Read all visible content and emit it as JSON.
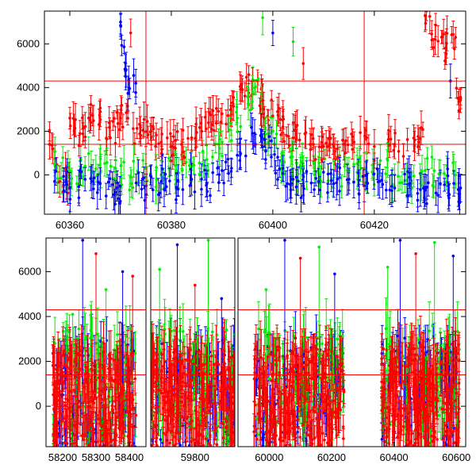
{
  "chart_data": [
    {
      "type": "scatter",
      "title": "",
      "xlabel": "",
      "ylabel": "",
      "xlim": [
        60355,
        60438
      ],
      "ylim": [
        -1800,
        7500
      ],
      "x_ticks": [
        60360,
        60380,
        60400,
        60420
      ],
      "y_ticks": [
        0,
        2000,
        4000,
        6000
      ],
      "hlines": [
        4300,
        1400
      ],
      "vlines": [
        60375,
        60418
      ],
      "error_bars": true,
      "grid": false,
      "legend": "none",
      "series": [
        {
          "color": "#ff0000",
          "points": [
            [
              60356,
              1400
            ],
            [
              60358,
              -300
            ],
            [
              60360,
              2600
            ],
            [
              60362,
              1900
            ],
            [
              60364,
              2500
            ],
            [
              60366,
              2900
            ],
            [
              60368,
              1700
            ],
            [
              60370,
              2600
            ],
            [
              60372,
              6500
            ],
            [
              60374,
              1800
            ],
            [
              60376,
              2000
            ],
            [
              60378,
              1500
            ],
            [
              60380,
              1300
            ],
            [
              60382,
              1400
            ],
            [
              60384,
              1700
            ],
            [
              60386,
              2000
            ],
            [
              60388,
              2300
            ],
            [
              60390,
              2800
            ],
            [
              60392,
              3300
            ],
            [
              60394,
              3900
            ],
            [
              60396,
              4300
            ],
            [
              60398,
              3400
            ],
            [
              60400,
              2700
            ],
            [
              60402,
              2200
            ],
            [
              60404,
              1700
            ],
            [
              60406,
              5100
            ],
            [
              60408,
              1400
            ],
            [
              60410,
              1300
            ],
            [
              60412,
              1300
            ],
            [
              60414,
              1400
            ],
            [
              60416,
              1500
            ],
            [
              60420,
              1300
            ],
            [
              60424,
              1400
            ],
            [
              60428,
              1600
            ],
            [
              60430,
              7300
            ],
            [
              60432,
              6200
            ],
            [
              60434,
              5800
            ],
            [
              60436,
              6300
            ],
            [
              60437,
              3500
            ]
          ]
        },
        {
          "color": "#00ee00",
          "points": [
            [
              60357,
              500
            ],
            [
              60360,
              200
            ],
            [
              60363,
              400
            ],
            [
              60366,
              100
            ],
            [
              60369,
              300
            ],
            [
              60372,
              -100
            ],
            [
              60375,
              300
            ],
            [
              60378,
              0
            ],
            [
              60381,
              200
            ],
            [
              60384,
              400
            ],
            [
              60387,
              700
            ],
            [
              60390,
              1500
            ],
            [
              60393,
              2600
            ],
            [
              60396,
              3800
            ],
            [
              60398,
              7200
            ],
            [
              60400,
              2000
            ],
            [
              60402,
              600
            ],
            [
              60404,
              6100
            ],
            [
              60406,
              300
            ],
            [
              60409,
              100
            ],
            [
              60412,
              0
            ],
            [
              60415,
              200
            ],
            [
              60418,
              300
            ],
            [
              60421,
              100
            ],
            [
              60424,
              0
            ],
            [
              60427,
              -300
            ],
            [
              60430,
              200
            ],
            [
              60433,
              100
            ],
            [
              60436,
              0
            ]
          ]
        },
        {
          "color": "#0000ff",
          "points": [
            [
              60357,
              -300
            ],
            [
              60360,
              -600
            ],
            [
              60363,
              -200
            ],
            [
              60366,
              -400
            ],
            [
              60369,
              -800
            ],
            [
              60370,
              7000
            ],
            [
              60371,
              4500
            ],
            [
              60373,
              4200
            ],
            [
              60375,
              -500
            ],
            [
              60378,
              -300
            ],
            [
              60381,
              -600
            ],
            [
              60384,
              -200
            ],
            [
              60387,
              -400
            ],
            [
              60390,
              200
            ],
            [
              60393,
              900
            ],
            [
              60396,
              1900
            ],
            [
              60398,
              1300
            ],
            [
              60400,
              6500
            ],
            [
              60402,
              300
            ],
            [
              60404,
              -200
            ],
            [
              60406,
              -500
            ],
            [
              60409,
              -300
            ],
            [
              60412,
              -400
            ],
            [
              60415,
              -200
            ],
            [
              60418,
              -500
            ],
            [
              60421,
              -300
            ],
            [
              60424,
              -600
            ],
            [
              60427,
              -400
            ],
            [
              60430,
              -700
            ],
            [
              60433,
              -400
            ],
            [
              60435,
              4300
            ],
            [
              60437,
              -600
            ]
          ]
        }
      ]
    },
    {
      "type": "scatter",
      "title": "",
      "xlabel": "",
      "ylabel": "",
      "ylim": [
        -1800,
        7500
      ],
      "y_ticks": [
        0,
        2000,
        4000,
        6000
      ],
      "hlines": [
        4300,
        1400
      ],
      "error_bars": true,
      "grid": false,
      "legend": "none",
      "broken_axis_segments": [
        {
          "xlim": [
            58150,
            58450
          ],
          "x_ticks": [
            58200,
            58300,
            58400
          ],
          "clusters": [
            {
              "x_range": [
                58170,
                58420
              ],
              "red_y_range": [
                -1800,
                2500
              ],
              "green_y_range": [
                -1500,
                3500
              ],
              "blue_y_range": [
                -1800,
                3000
              ],
              "spikes": [
                [
                  58230,
                  4100
                ],
                [
                  58260,
                  7400
                ],
                [
                  58300,
                  6800
                ],
                [
                  58330,
                  5200
                ],
                [
                  58380,
                  6000
                ],
                [
                  58410,
                  5800
                ]
              ]
            }
          ]
        },
        {
          "xlim": [
            59700,
            59890
          ],
          "x_ticks": [
            59800
          ],
          "clusters": [
            {
              "x_range": [
                59700,
                59890
              ],
              "red_y_range": [
                -1800,
                2600
              ],
              "green_y_range": [
                -1500,
                3500
              ],
              "blue_y_range": [
                -1800,
                3000
              ],
              "spikes": [
                [
                  59720,
                  6100
                ],
                [
                  59760,
                  7200
                ],
                [
                  59800,
                  5400
                ],
                [
                  59830,
                  7400
                ],
                [
                  59860,
                  4800
                ]
              ]
            }
          ]
        },
        {
          "xlim": [
            59900,
            60630
          ],
          "x_ticks": [
            60000,
            60200,
            60400,
            60600
          ],
          "clusters": [
            {
              "x_range": [
                59950,
                60240
              ],
              "red_y_range": [
                -1800,
                2700
              ],
              "green_y_range": [
                -1500,
                3600
              ],
              "blue_y_range": [
                -1800,
                3100
              ],
              "spikes": [
                [
                  59990,
                  5200
                ],
                [
                  60050,
                  7400
                ],
                [
                  60100,
                  6600
                ],
                [
                  60160,
                  7100
                ],
                [
                  60210,
                  5900
                ]
              ]
            },
            {
              "x_range": [
                60360,
                60610
              ],
              "red_y_range": [
                -1800,
                2800
              ],
              "green_y_range": [
                -1500,
                3600
              ],
              "blue_y_range": [
                -1800,
                3200
              ],
              "spikes": [
                [
                  60380,
                  6200
                ],
                [
                  60420,
                  7400
                ],
                [
                  60470,
                  6800
                ],
                [
                  60530,
                  7300
                ],
                [
                  60590,
                  6700
                ]
              ]
            }
          ]
        }
      ]
    }
  ]
}
